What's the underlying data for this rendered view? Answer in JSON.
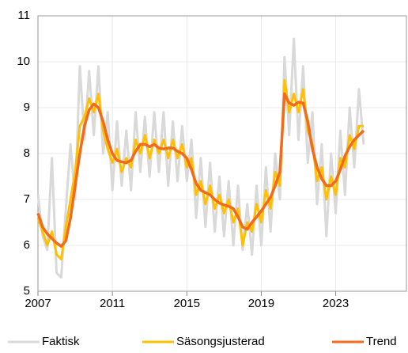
{
  "chart_data": {
    "type": "line",
    "x": [
      2007,
      2007.25,
      2007.5,
      2007.75,
      2008,
      2008.25,
      2008.5,
      2008.75,
      2009,
      2009.25,
      2009.5,
      2009.75,
      2010,
      2010.25,
      2010.5,
      2010.75,
      2011,
      2011.25,
      2011.5,
      2011.75,
      2012,
      2012.25,
      2012.5,
      2012.75,
      2013,
      2013.25,
      2013.5,
      2013.75,
      2014,
      2014.25,
      2014.5,
      2014.75,
      2015,
      2015.25,
      2015.5,
      2015.75,
      2016,
      2016.25,
      2016.5,
      2016.75,
      2017,
      2017.25,
      2017.5,
      2017.75,
      2018,
      2018.25,
      2018.5,
      2018.75,
      2019,
      2019.25,
      2019.5,
      2019.75,
      2020,
      2020.25,
      2020.5,
      2020.75,
      2021,
      2021.25,
      2021.5,
      2021.75,
      2022,
      2022.25,
      2022.5,
      2022.75,
      2023,
      2023.25,
      2023.5,
      2023.75,
      2024,
      2024.25,
      2024.5
    ],
    "series": [
      {
        "name": "Faktisk",
        "color": "#d9d9d9",
        "width": 3,
        "values": [
          7.1,
          6.2,
          5.9,
          7.9,
          5.4,
          5.3,
          6.8,
          8.2,
          7.0,
          9.9,
          8.3,
          9.8,
          8.4,
          9.9,
          8.0,
          8.9,
          7.2,
          8.7,
          7.3,
          8.5,
          7.2,
          8.9,
          7.6,
          8.8,
          7.5,
          8.9,
          7.6,
          8.9,
          7.3,
          8.7,
          7.4,
          8.6,
          7.4,
          8.3,
          6.6,
          7.9,
          6.4,
          7.8,
          6.3,
          7.5,
          6.2,
          7.4,
          6.0,
          7.3,
          5.9,
          6.9,
          5.8,
          7.3,
          6.0,
          7.7,
          6.3,
          8.0,
          7.0,
          10.1,
          8.4,
          10.5,
          8.3,
          9.9,
          7.8,
          8.9,
          6.9,
          8.2,
          6.2,
          8.0,
          6.7,
          8.5,
          7.1,
          9.0,
          7.7,
          9.4,
          8.2
        ]
      },
      {
        "name": "Säsongsjusterad",
        "color": "#ffc000",
        "width": 3,
        "values": [
          6.6,
          6.3,
          6.0,
          6.3,
          5.8,
          5.7,
          6.4,
          7.0,
          7.6,
          8.6,
          8.8,
          9.2,
          8.9,
          9.3,
          8.5,
          8.1,
          7.8,
          8.1,
          7.6,
          7.9,
          7.7,
          8.3,
          8.0,
          8.4,
          7.9,
          8.3,
          8.0,
          8.3,
          7.9,
          8.3,
          7.9,
          8.2,
          7.7,
          7.9,
          7.1,
          7.4,
          6.9,
          7.3,
          6.8,
          7.1,
          6.7,
          7.0,
          6.5,
          6.8,
          6.0,
          6.5,
          6.3,
          6.9,
          6.5,
          7.2,
          6.8,
          7.6,
          7.3,
          9.6,
          8.9,
          9.3,
          8.9,
          9.4,
          8.5,
          8.2,
          7.4,
          7.7,
          7.0,
          7.5,
          7.1,
          7.9,
          7.7,
          8.4,
          8.1,
          8.6,
          8.6
        ]
      },
      {
        "name": "Trend",
        "color": "#f26a1b",
        "width": 3.5,
        "values": [
          6.7,
          6.4,
          6.25,
          6.15,
          6.05,
          5.98,
          6.1,
          6.6,
          7.3,
          8.0,
          8.6,
          8.95,
          9.08,
          9.0,
          8.7,
          8.3,
          8.0,
          7.85,
          7.82,
          7.8,
          7.85,
          8.05,
          8.2,
          8.2,
          8.15,
          8.2,
          8.12,
          8.1,
          8.12,
          8.12,
          8.05,
          8.0,
          7.9,
          7.65,
          7.35,
          7.2,
          7.15,
          7.1,
          7.0,
          6.92,
          6.88,
          6.85,
          6.8,
          6.62,
          6.4,
          6.35,
          6.5,
          6.62,
          6.75,
          6.9,
          7.05,
          7.3,
          7.6,
          9.3,
          9.1,
          9.05,
          9.12,
          9.1,
          8.7,
          8.1,
          7.7,
          7.45,
          7.3,
          7.3,
          7.4,
          7.65,
          7.95,
          8.15,
          8.3,
          8.4,
          8.5
        ]
      }
    ],
    "xlim": [
      2007,
      2026.8
    ],
    "xticks": [
      2007,
      2011,
      2015,
      2019,
      2023
    ],
    "ylim": [
      5,
      11
    ],
    "yticks": [
      5,
      6,
      7,
      8,
      9,
      10,
      11
    ],
    "grid": true,
    "legend": "bottom"
  }
}
